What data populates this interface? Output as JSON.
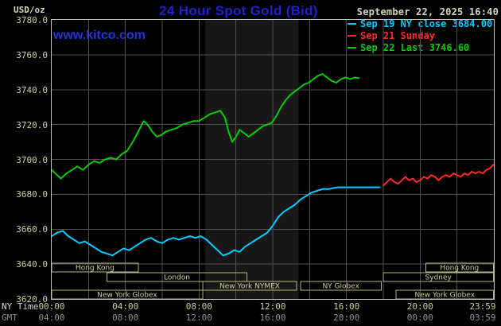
{
  "header": {
    "y_units": "USD/oz",
    "title": "24 Hour Spot Gold (Bid)",
    "datetime": "September 22, 2025 16:40",
    "watermark": "www.kitco.com"
  },
  "axes": {
    "x_label_ny": "NY Time",
    "x_label_gmt": "GMT"
  },
  "colors": {
    "background": "#000000",
    "title_blue": "#2121cc",
    "watermark_blue": "#2433d6",
    "tick_tan": "#cfcf9f",
    "gmt_gray": "#8f8f8f",
    "grid": "#4f4f4f",
    "plot_border": "#c2c2c2",
    "nymex_band": "#181818",
    "session_border": "#b9b878",
    "session_text": "#cfcf9f"
  },
  "sessions": [
    {
      "label": "Hong Kong",
      "row": 0,
      "start_hour": 0.0,
      "end_hour": 4.7
    },
    {
      "label": "Hong Kong",
      "row": 0,
      "start_hour": 20.3,
      "end_hour": 23.97
    },
    {
      "label": "London",
      "row": 1,
      "start_hour": 3.0,
      "end_hour": 10.6
    },
    {
      "label": "Sydney",
      "row": 1,
      "start_hour": 18.0,
      "end_hour": 23.97
    },
    {
      "label": "New York NYMEX",
      "row": 2,
      "start_hour": 8.2,
      "end_hour": 13.3
    },
    {
      "label": "NY Globex",
      "row": 2,
      "start_hour": 13.5,
      "end_hour": 17.9
    },
    {
      "label": "New York Globex",
      "row": 3,
      "start_hour": 0.0,
      "end_hour": 8.2
    },
    {
      "label": "New York Globex",
      "row": 3,
      "start_hour": 18.7,
      "end_hour": 23.97
    }
  ],
  "chart_data": {
    "type": "line",
    "title": "24 Hour Spot Gold (Bid)",
    "legend_position": "top-right",
    "grid": true,
    "nymex_band_hours": [
      8.33,
      13.4
    ],
    "x_axis": {
      "unit": "hour of day, NY time",
      "min": 0,
      "max": 24,
      "tick_hours": [
        0,
        4,
        8,
        12,
        16,
        20,
        23.983
      ],
      "ticks_ny_time": [
        "00:00",
        "04:00",
        "08:00",
        "12:00",
        "16:00",
        "20:00",
        "23:59"
      ],
      "ticks_gmt": [
        "04:00",
        "08:00",
        "12:00",
        "16:00",
        "20:00",
        "00:00",
        "03:59"
      ]
    },
    "y_axis": {
      "unit": "USD/oz",
      "min": 3620,
      "max": 3780,
      "tick_step": 20,
      "tick_labels": [
        "3780.0",
        "3760.0",
        "3740.0",
        "3720.0",
        "3700.0",
        "3680.0",
        "3660.0",
        "3640.0",
        "3620.0"
      ]
    },
    "series": [
      {
        "id": "sep19-ny-close",
        "name": "Sep 19 NY close 3684.00",
        "color": "#00ccff",
        "close_value": 3684.0,
        "points": [
          [
            0,
            3656
          ],
          [
            0.3,
            3658
          ],
          [
            0.6,
            3659
          ],
          [
            0.9,
            3656
          ],
          [
            1.2,
            3654
          ],
          [
            1.5,
            3652
          ],
          [
            1.8,
            3653
          ],
          [
            2.1,
            3651
          ],
          [
            2.4,
            3649
          ],
          [
            2.7,
            3647
          ],
          [
            3.0,
            3646
          ],
          [
            3.3,
            3645
          ],
          [
            3.6,
            3647
          ],
          [
            3.9,
            3649
          ],
          [
            4.2,
            3648
          ],
          [
            4.5,
            3650
          ],
          [
            4.8,
            3652
          ],
          [
            5.1,
            3654
          ],
          [
            5.4,
            3655
          ],
          [
            5.7,
            3653
          ],
          [
            6.0,
            3652
          ],
          [
            6.3,
            3654
          ],
          [
            6.6,
            3655
          ],
          [
            6.9,
            3654
          ],
          [
            7.2,
            3655
          ],
          [
            7.5,
            3656
          ],
          [
            7.8,
            3655
          ],
          [
            8.1,
            3656
          ],
          [
            8.4,
            3654
          ],
          [
            8.7,
            3651
          ],
          [
            9.0,
            3648
          ],
          [
            9.3,
            3645
          ],
          [
            9.6,
            3646
          ],
          [
            9.9,
            3648
          ],
          [
            10.2,
            3647
          ],
          [
            10.5,
            3650
          ],
          [
            10.8,
            3652
          ],
          [
            11.1,
            3654
          ],
          [
            11.4,
            3656
          ],
          [
            11.7,
            3658
          ],
          [
            12.0,
            3662
          ],
          [
            12.3,
            3667
          ],
          [
            12.6,
            3670
          ],
          [
            12.9,
            3672
          ],
          [
            13.2,
            3674
          ],
          [
            13.5,
            3677
          ],
          [
            13.8,
            3679
          ],
          [
            14.1,
            3681
          ],
          [
            14.4,
            3682
          ],
          [
            14.7,
            3683
          ],
          [
            15.0,
            3683
          ],
          [
            15.5,
            3684
          ],
          [
            16.0,
            3684
          ],
          [
            16.5,
            3684
          ],
          [
            17.0,
            3684
          ],
          [
            17.4,
            3684
          ],
          [
            17.8,
            3684
          ]
        ]
      },
      {
        "id": "sep21-sunday",
        "name": "Sep 21 Sunday",
        "color": "#ff2a2a",
        "points": [
          [
            18.0,
            3685
          ],
          [
            18.2,
            3687
          ],
          [
            18.4,
            3689
          ],
          [
            18.6,
            3687
          ],
          [
            18.8,
            3686
          ],
          [
            19.0,
            3688
          ],
          [
            19.2,
            3690
          ],
          [
            19.4,
            3688
          ],
          [
            19.6,
            3689
          ],
          [
            19.8,
            3687
          ],
          [
            20.0,
            3688
          ],
          [
            20.2,
            3690
          ],
          [
            20.4,
            3689
          ],
          [
            20.6,
            3691
          ],
          [
            20.8,
            3690
          ],
          [
            21.0,
            3688
          ],
          [
            21.2,
            3690
          ],
          [
            21.4,
            3691
          ],
          [
            21.6,
            3690
          ],
          [
            21.8,
            3692
          ],
          [
            22.0,
            3691
          ],
          [
            22.2,
            3690
          ],
          [
            22.4,
            3692
          ],
          [
            22.6,
            3691
          ],
          [
            22.8,
            3693
          ],
          [
            23.0,
            3692
          ],
          [
            23.2,
            3693
          ],
          [
            23.4,
            3692
          ],
          [
            23.6,
            3694
          ],
          [
            23.8,
            3695
          ],
          [
            23.97,
            3697
          ]
        ]
      },
      {
        "id": "sep22-current",
        "name": "Sep 22 Last 3746.60",
        "color": "#00cc00",
        "last_value": 3746.6,
        "points": [
          [
            0,
            3694
          ],
          [
            0.3,
            3691
          ],
          [
            0.5,
            3689
          ],
          [
            0.8,
            3692
          ],
          [
            1.1,
            3694
          ],
          [
            1.4,
            3696
          ],
          [
            1.7,
            3694
          ],
          [
            2.0,
            3697
          ],
          [
            2.3,
            3699
          ],
          [
            2.6,
            3698
          ],
          [
            2.9,
            3700
          ],
          [
            3.2,
            3701
          ],
          [
            3.5,
            3700
          ],
          [
            3.8,
            3703
          ],
          [
            4.1,
            3705
          ],
          [
            4.4,
            3710
          ],
          [
            4.7,
            3716
          ],
          [
            5.0,
            3722
          ],
          [
            5.2,
            3720
          ],
          [
            5.45,
            3716
          ],
          [
            5.7,
            3713
          ],
          [
            5.95,
            3714
          ],
          [
            6.2,
            3716
          ],
          [
            6.5,
            3717
          ],
          [
            6.8,
            3718
          ],
          [
            7.1,
            3720
          ],
          [
            7.4,
            3721
          ],
          [
            7.7,
            3722
          ],
          [
            8.0,
            3722
          ],
          [
            8.3,
            3724
          ],
          [
            8.6,
            3726
          ],
          [
            8.9,
            3727
          ],
          [
            9.15,
            3728
          ],
          [
            9.4,
            3724
          ],
          [
            9.6,
            3716
          ],
          [
            9.8,
            3710
          ],
          [
            10.0,
            3713
          ],
          [
            10.2,
            3717
          ],
          [
            10.45,
            3715
          ],
          [
            10.7,
            3713
          ],
          [
            10.95,
            3715
          ],
          [
            11.2,
            3717
          ],
          [
            11.45,
            3719
          ],
          [
            11.7,
            3720
          ],
          [
            11.95,
            3721
          ],
          [
            12.2,
            3725
          ],
          [
            12.45,
            3730
          ],
          [
            12.7,
            3734
          ],
          [
            12.95,
            3737
          ],
          [
            13.2,
            3739
          ],
          [
            13.45,
            3741
          ],
          [
            13.7,
            3743
          ],
          [
            13.95,
            3744
          ],
          [
            14.2,
            3746
          ],
          [
            14.45,
            3748
          ],
          [
            14.7,
            3749
          ],
          [
            14.95,
            3747
          ],
          [
            15.2,
            3745
          ],
          [
            15.45,
            3744
          ],
          [
            15.7,
            3746
          ],
          [
            15.95,
            3747
          ],
          [
            16.2,
            3746
          ],
          [
            16.45,
            3747
          ],
          [
            16.67,
            3746.6
          ]
        ]
      }
    ]
  }
}
